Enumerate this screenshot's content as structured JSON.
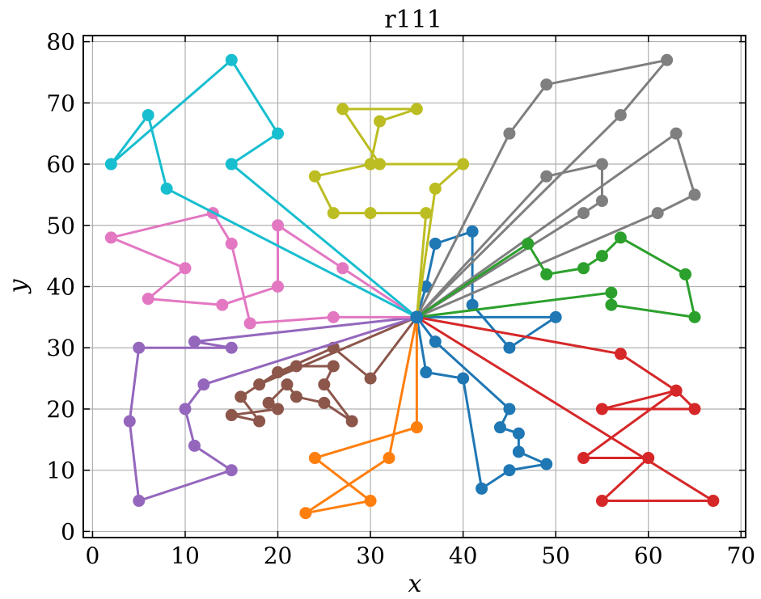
{
  "chart_data": {
    "type": "line",
    "title": "r111",
    "xlabel": "x",
    "ylabel": "y",
    "xlim": [
      -1,
      70.5
    ],
    "ylim": [
      -1,
      81
    ],
    "xticks": [
      0,
      10,
      20,
      30,
      40,
      50,
      60,
      70
    ],
    "yticks": [
      0,
      10,
      20,
      30,
      40,
      50,
      60,
      70,
      80
    ],
    "grid": true,
    "depot": [
      35,
      35
    ],
    "series": [
      {
        "color": "#1f77b4",
        "points": [
          [
            35,
            35
          ],
          [
            36,
            40
          ],
          [
            37,
            47
          ],
          [
            41,
            49
          ],
          [
            41,
            37
          ],
          [
            45,
            30
          ],
          [
            50,
            35
          ],
          [
            35,
            35
          ]
        ]
      },
      {
        "color": "#1f77b4",
        "points": [
          [
            35,
            35
          ],
          [
            37,
            31
          ],
          [
            45,
            20
          ],
          [
            44,
            17
          ],
          [
            46,
            16
          ],
          [
            46,
            13
          ],
          [
            49,
            11
          ],
          [
            45,
            10
          ],
          [
            42,
            7
          ],
          [
            40,
            25
          ],
          [
            36,
            26
          ],
          [
            35,
            35
          ]
        ]
      },
      {
        "color": "#7f7f7f",
        "points": [
          [
            35,
            35
          ],
          [
            45,
            65
          ],
          [
            49,
            73
          ],
          [
            62,
            77
          ],
          [
            57,
            68
          ],
          [
            35,
            35
          ]
        ]
      },
      {
        "color": "#7f7f7f",
        "points": [
          [
            35,
            35
          ],
          [
            49,
            58
          ],
          [
            55,
            60
          ],
          [
            55,
            54
          ],
          [
            53,
            52
          ],
          [
            35,
            35
          ]
        ]
      },
      {
        "color": "#7f7f7f",
        "points": [
          [
            35,
            35
          ],
          [
            63,
            65
          ],
          [
            65,
            55
          ],
          [
            61,
            52
          ],
          [
            35,
            35
          ]
        ]
      },
      {
        "color": "#2ca02c",
        "points": [
          [
            35,
            35
          ],
          [
            47,
            47
          ],
          [
            49,
            42
          ],
          [
            53,
            43
          ],
          [
            55,
            45
          ],
          [
            57,
            48
          ],
          [
            64,
            42
          ],
          [
            65,
            35
          ],
          [
            56,
            37
          ],
          [
            56,
            39
          ],
          [
            35,
            35
          ]
        ]
      },
      {
        "color": "#d62728",
        "points": [
          [
            35,
            35
          ],
          [
            57,
            29
          ],
          [
            63,
            23
          ],
          [
            55,
            20
          ],
          [
            65,
            20
          ],
          [
            63,
            23
          ],
          [
            53,
            12
          ],
          [
            60,
            12
          ],
          [
            55,
            5
          ],
          [
            67,
            5
          ],
          [
            35,
            35
          ]
        ]
      },
      {
        "color": "#ff7f0e",
        "points": [
          [
            35,
            35
          ],
          [
            35,
            17
          ],
          [
            24,
            12
          ],
          [
            30,
            5
          ],
          [
            23,
            3
          ],
          [
            32,
            12
          ],
          [
            35,
            35
          ]
        ]
      },
      {
        "color": "#8c564b",
        "points": [
          [
            35,
            35
          ],
          [
            30,
            25
          ],
          [
            26,
            30
          ],
          [
            20,
            26
          ],
          [
            16,
            22
          ],
          [
            18,
            18
          ],
          [
            15,
            19
          ],
          [
            20,
            20
          ],
          [
            19,
            21
          ],
          [
            21,
            24
          ],
          [
            22,
            22
          ],
          [
            25,
            21
          ],
          [
            28,
            18
          ],
          [
            25,
            24
          ],
          [
            26,
            27
          ],
          [
            22,
            27
          ],
          [
            18,
            24
          ],
          [
            35,
            35
          ]
        ]
      },
      {
        "color": "#9467bd",
        "points": [
          [
            35,
            35
          ],
          [
            11,
            31
          ],
          [
            15,
            30
          ],
          [
            5,
            30
          ],
          [
            4,
            18
          ],
          [
            5,
            5
          ],
          [
            15,
            10
          ],
          [
            11,
            14
          ],
          [
            10,
            20
          ],
          [
            12,
            24
          ],
          [
            35,
            35
          ]
        ]
      },
      {
        "color": "#e377c2",
        "points": [
          [
            35,
            35
          ],
          [
            26,
            35
          ],
          [
            17,
            34
          ],
          [
            15,
            47
          ],
          [
            13,
            52
          ],
          [
            2,
            48
          ],
          [
            10,
            43
          ],
          [
            6,
            38
          ],
          [
            14,
            37
          ],
          [
            20,
            40
          ],
          [
            20,
            50
          ],
          [
            27,
            43
          ],
          [
            35,
            35
          ]
        ]
      },
      {
        "color": "#bcbd22",
        "points": [
          [
            35,
            35
          ],
          [
            36,
            52
          ],
          [
            30,
            52
          ],
          [
            26,
            52
          ],
          [
            24,
            58
          ],
          [
            30,
            60
          ],
          [
            31,
            67
          ],
          [
            35,
            69
          ],
          [
            27,
            69
          ],
          [
            31,
            60
          ],
          [
            40,
            60
          ],
          [
            37,
            56
          ],
          [
            35,
            35
          ]
        ]
      },
      {
        "color": "#17becf",
        "points": [
          [
            35,
            35
          ],
          [
            8,
            56
          ],
          [
            6,
            68
          ],
          [
            2,
            60
          ],
          [
            15,
            77
          ],
          [
            20,
            65
          ],
          [
            15,
            60
          ],
          [
            35,
            35
          ]
        ]
      }
    ]
  }
}
